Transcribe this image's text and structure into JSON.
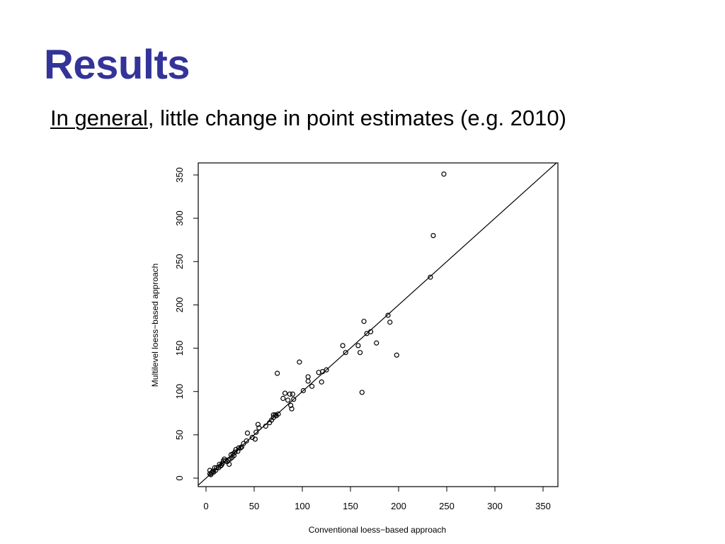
{
  "slide": {
    "title": "Results",
    "subtitle_emphasis": "In general",
    "subtitle_rest": ", little change in point estimates (e.g. 2010)",
    "title_color": "#333399"
  },
  "chart_data": {
    "type": "scatter",
    "xlabel": "Conventional loess−based approach",
    "ylabel": "Multilevel loess−based approach",
    "xlim": [
      0,
      365
    ],
    "ylim": [
      0,
      355
    ],
    "xticks": [
      0,
      50,
      100,
      150,
      200,
      250,
      300,
      350
    ],
    "yticks": [
      0,
      50,
      100,
      150,
      200,
      250,
      300,
      350
    ],
    "grid": false,
    "reference_line": {
      "slope": 1,
      "intercept": 0
    },
    "points": [
      [
        247,
        351
      ],
      [
        236,
        280
      ],
      [
        233,
        232
      ],
      [
        189,
        188
      ],
      [
        191,
        180
      ],
      [
        164,
        181
      ],
      [
        198,
        142
      ],
      [
        177,
        156
      ],
      [
        171,
        169
      ],
      [
        167,
        167
      ],
      [
        158,
        153
      ],
      [
        160,
        145
      ],
      [
        142,
        153
      ],
      [
        145,
        145
      ],
      [
        162,
        99
      ],
      [
        125,
        125
      ],
      [
        121,
        123
      ],
      [
        117,
        122
      ],
      [
        120,
        111
      ],
      [
        106,
        117
      ],
      [
        106,
        112
      ],
      [
        110,
        106
      ],
      [
        101,
        101
      ],
      [
        97,
        134
      ],
      [
        74,
        121
      ],
      [
        90,
        97
      ],
      [
        91,
        91
      ],
      [
        87,
        97
      ],
      [
        82,
        98
      ],
      [
        85,
        90
      ],
      [
        88,
        84
      ],
      [
        89,
        80
      ],
      [
        80,
        92
      ],
      [
        75,
        74
      ],
      [
        72,
        73
      ],
      [
        70,
        70
      ],
      [
        68,
        67
      ],
      [
        66,
        64
      ],
      [
        62,
        60
      ],
      [
        55,
        58
      ],
      [
        54,
        62
      ],
      [
        52,
        53
      ],
      [
        51,
        45
      ],
      [
        48,
        47
      ],
      [
        43,
        52
      ],
      [
        42,
        43
      ],
      [
        39,
        40
      ],
      [
        37,
        36
      ],
      [
        34,
        35
      ],
      [
        31,
        33
      ],
      [
        30,
        30
      ],
      [
        28,
        28
      ],
      [
        26,
        27
      ],
      [
        25,
        22
      ],
      [
        24,
        16
      ],
      [
        22,
        19
      ],
      [
        20,
        20
      ],
      [
        18,
        20
      ],
      [
        17,
        17
      ],
      [
        15,
        14
      ],
      [
        13,
        12
      ],
      [
        11,
        12
      ],
      [
        10,
        9
      ],
      [
        9,
        12
      ],
      [
        8,
        7
      ],
      [
        7,
        8
      ],
      [
        6,
        6
      ],
      [
        5,
        4
      ],
      [
        4,
        5
      ],
      [
        4,
        9
      ],
      [
        14,
        16
      ],
      [
        16,
        15
      ],
      [
        19,
        22
      ],
      [
        23,
        21
      ],
      [
        27,
        24
      ],
      [
        29,
        26
      ],
      [
        33,
        31
      ],
      [
        36,
        35
      ],
      [
        73,
        72
      ],
      [
        70,
        73
      ]
    ]
  }
}
